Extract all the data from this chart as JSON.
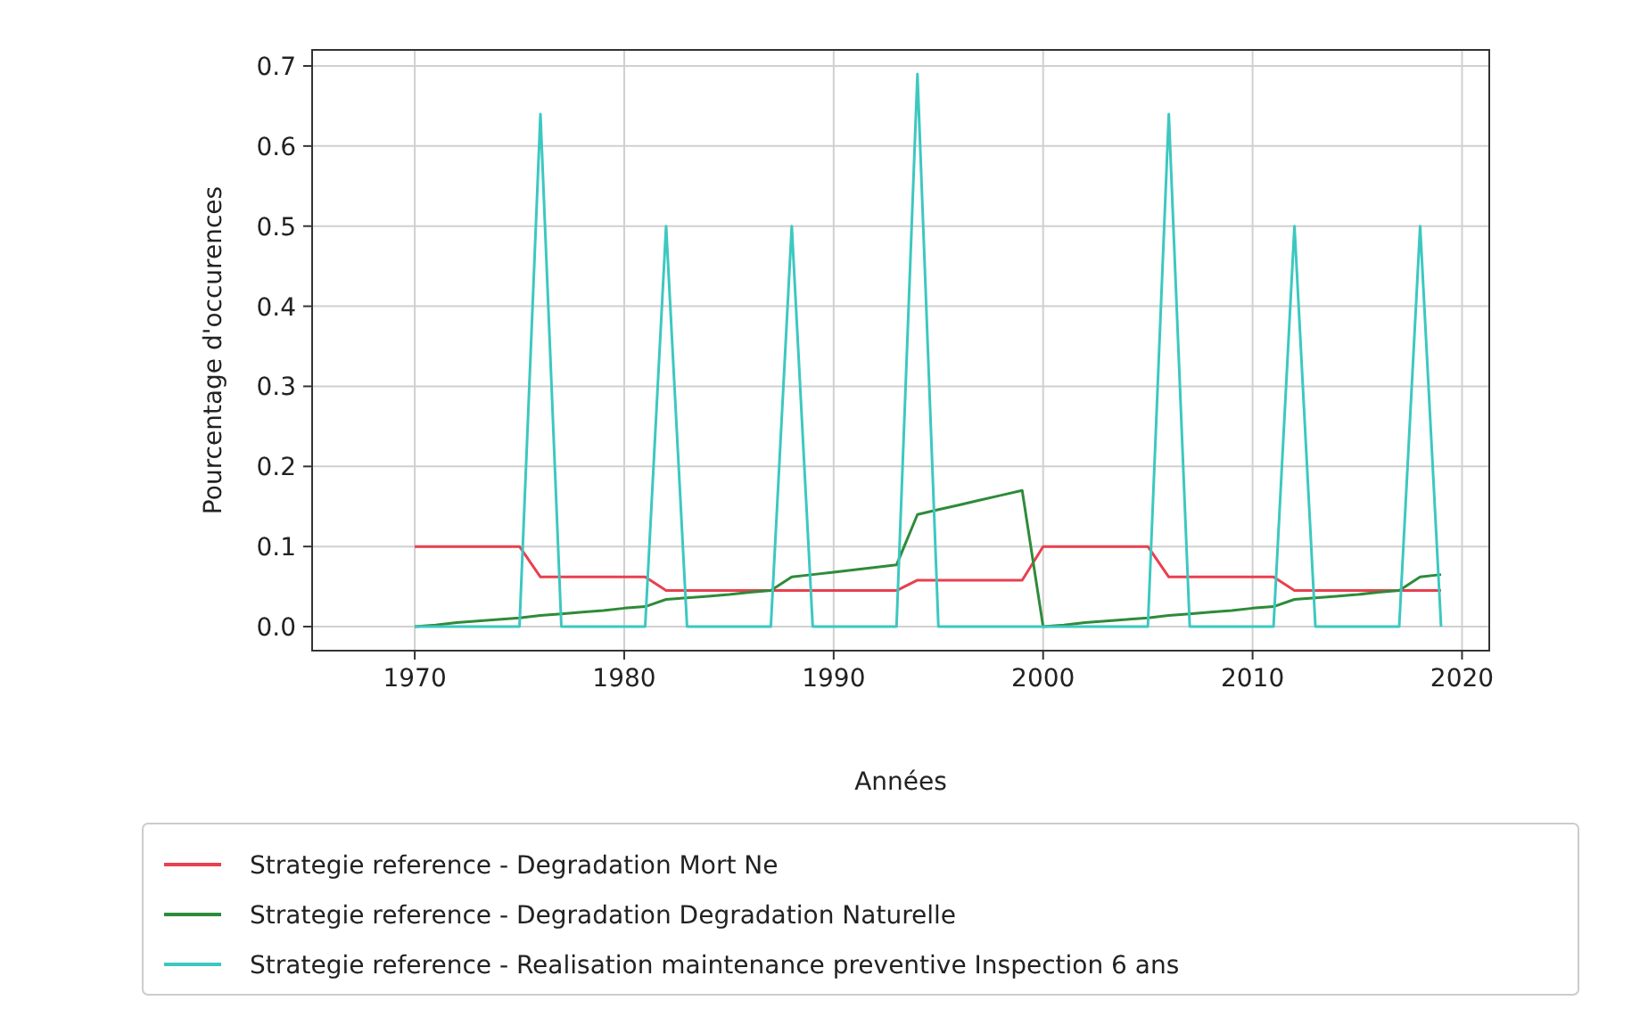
{
  "chart_data": {
    "type": "line",
    "xlabel": "Années",
    "ylabel": "Pourcentage d'occurences",
    "x": [
      1970,
      1971,
      1972,
      1973,
      1974,
      1975,
      1976,
      1977,
      1978,
      1979,
      1980,
      1981,
      1982,
      1983,
      1984,
      1985,
      1986,
      1987,
      1988,
      1989,
      1990,
      1991,
      1992,
      1993,
      1994,
      1995,
      1996,
      1997,
      1998,
      1999,
      2000,
      2001,
      2002,
      2003,
      2004,
      2005,
      2006,
      2007,
      2008,
      2009,
      2010,
      2011,
      2012,
      2013,
      2014,
      2015,
      2016,
      2017,
      2018,
      2019
    ],
    "series": [
      {
        "name": "Strategie reference - Degradation Mort Ne",
        "color": "#e8404f",
        "values": [
          0.1,
          0.1,
          0.1,
          0.1,
          0.1,
          0.1,
          0.062,
          0.062,
          0.062,
          0.062,
          0.062,
          0.062,
          0.045,
          0.045,
          0.045,
          0.045,
          0.045,
          0.045,
          0.045,
          0.045,
          0.045,
          0.045,
          0.045,
          0.045,
          0.058,
          0.058,
          0.058,
          0.058,
          0.058,
          0.058,
          0.1,
          0.1,
          0.1,
          0.1,
          0.1,
          0.1,
          0.062,
          0.062,
          0.062,
          0.062,
          0.062,
          0.062,
          0.045,
          0.045,
          0.045,
          0.045,
          0.045,
          0.045,
          0.045,
          0.045
        ]
      },
      {
        "name": "Strategie reference - Degradation Degradation Naturelle",
        "color": "#2e8b3a",
        "values": [
          0,
          0.002,
          0.005,
          0.007,
          0.009,
          0.011,
          0.014,
          0.016,
          0.018,
          0.02,
          0.023,
          0.025,
          0.034,
          0.036,
          0.038,
          0.04,
          0.043,
          0.045,
          0.062,
          0.065,
          0.068,
          0.071,
          0.074,
          0.077,
          0.14,
          0.146,
          0.152,
          0.158,
          0.164,
          0.17,
          0,
          0.002,
          0.005,
          0.007,
          0.009,
          0.011,
          0.014,
          0.016,
          0.018,
          0.02,
          0.023,
          0.025,
          0.034,
          0.036,
          0.038,
          0.04,
          0.043,
          0.045,
          0.062,
          0.065
        ]
      },
      {
        "name": "Strategie reference - Realisation maintenance preventive Inspection 6 ans",
        "color": "#3cc8c0",
        "values": [
          0,
          0,
          0,
          0,
          0,
          0,
          0.64,
          0,
          0,
          0,
          0,
          0,
          0.5,
          0,
          0,
          0,
          0,
          0,
          0.5,
          0,
          0,
          0,
          0,
          0,
          0.69,
          0,
          0,
          0,
          0,
          0,
          0,
          0,
          0,
          0,
          0,
          0,
          0.64,
          0,
          0,
          0,
          0,
          0,
          0.5,
          0,
          0,
          0,
          0,
          0,
          0.5,
          0
        ]
      }
    ],
    "xlim": [
      1965.1,
      2021.3
    ],
    "xticks": [
      1970,
      1980,
      1990,
      2000,
      2010,
      2020
    ],
    "ylim": [
      -0.03,
      0.72
    ],
    "yticks": [
      {
        "value": 0,
        "label": "0.0"
      },
      0.1,
      0.2,
      0.3,
      0.4,
      0.5,
      0.6,
      0.7
    ],
    "grid": true,
    "legend": "bottom",
    "marker": "none",
    "line_style": "solid"
  }
}
